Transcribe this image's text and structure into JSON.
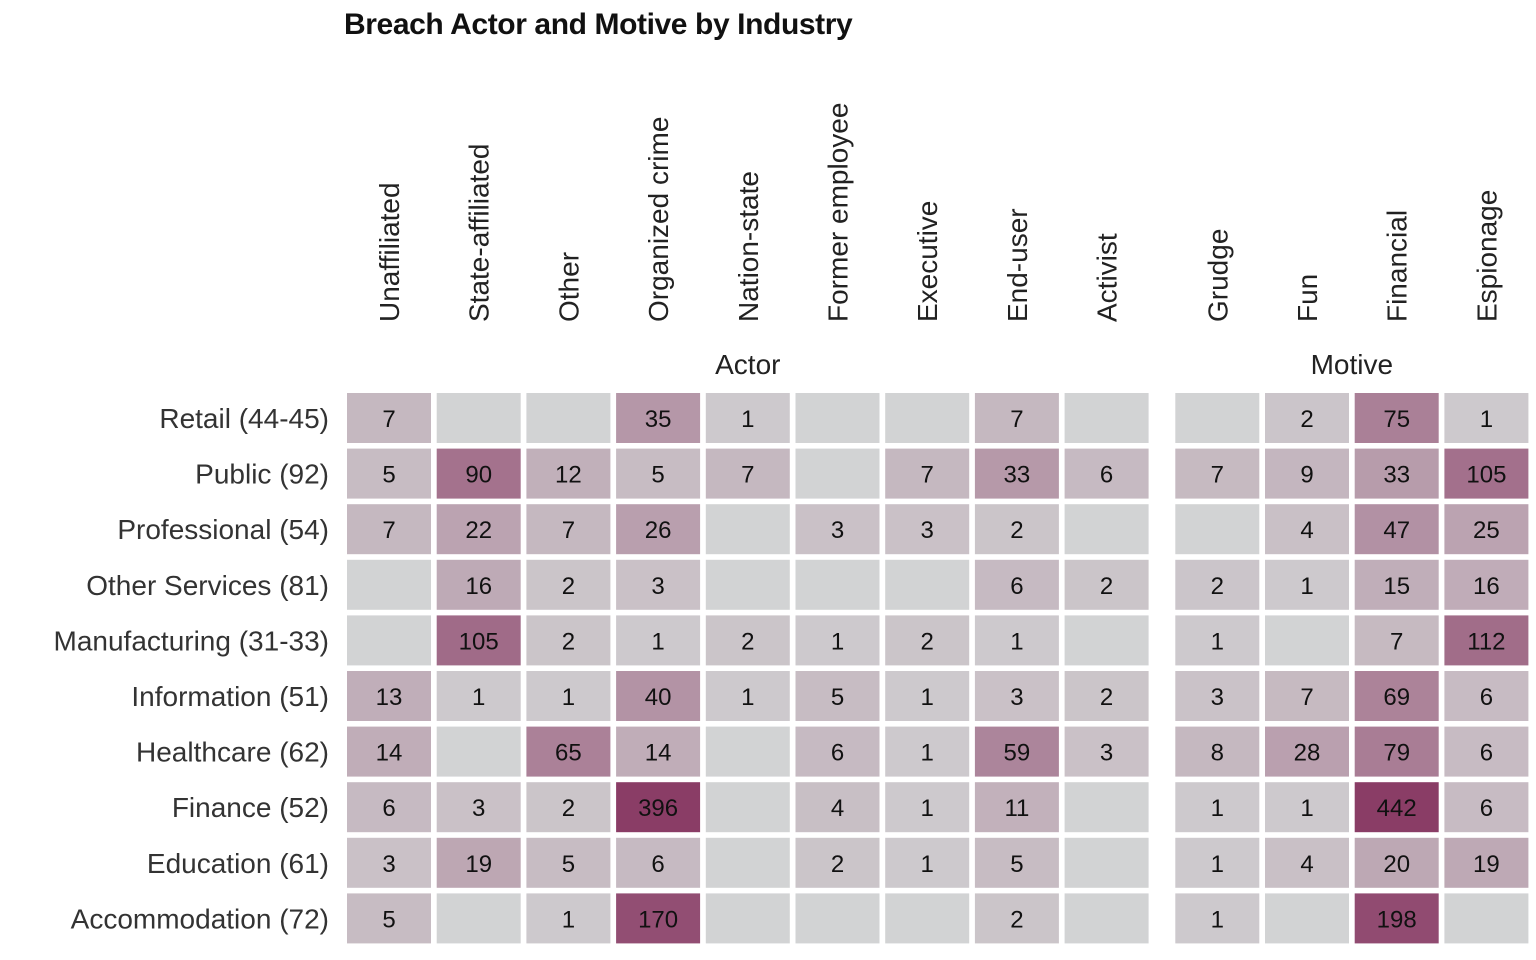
{
  "chart_data": {
    "type": "heatmap",
    "title": "Breach Actor and Motive by Industry",
    "groups": [
      {
        "name": "Actor",
        "columns": [
          "Unaffiliated",
          "State-affiliated",
          "Other",
          "Organized crime",
          "Nation-state",
          "Former employee",
          "Executive",
          "End-user",
          "Activist"
        ]
      },
      {
        "name": "Motive",
        "columns": [
          "Grudge",
          "Fun",
          "Financial",
          "Espionage"
        ]
      }
    ],
    "rows": [
      "Retail (44-45)",
      "Public (92)",
      "Professional (54)",
      "Other Services (81)",
      "Manufacturing (31-33)",
      "Information (51)",
      "Healthcare (62)",
      "Finance (52)",
      "Education (61)",
      "Accommodation (72)"
    ],
    "values": [
      [
        7,
        null,
        null,
        35,
        1,
        null,
        null,
        7,
        null,
        null,
        2,
        75,
        1
      ],
      [
        5,
        90,
        12,
        5,
        7,
        null,
        7,
        33,
        6,
        7,
        9,
        33,
        105
      ],
      [
        7,
        22,
        7,
        26,
        null,
        3,
        3,
        2,
        null,
        null,
        4,
        47,
        25
      ],
      [
        null,
        16,
        2,
        3,
        null,
        null,
        null,
        6,
        2,
        2,
        1,
        15,
        16
      ],
      [
        null,
        105,
        2,
        1,
        2,
        1,
        2,
        1,
        null,
        1,
        null,
        7,
        112
      ],
      [
        13,
        1,
        1,
        40,
        1,
        5,
        1,
        3,
        2,
        3,
        7,
        69,
        6
      ],
      [
        14,
        null,
        65,
        14,
        null,
        6,
        1,
        59,
        3,
        8,
        28,
        79,
        6
      ],
      [
        6,
        3,
        2,
        396,
        null,
        4,
        1,
        11,
        null,
        1,
        1,
        442,
        6
      ],
      [
        3,
        19,
        5,
        6,
        null,
        2,
        1,
        5,
        null,
        1,
        4,
        20,
        19
      ],
      [
        5,
        null,
        1,
        170,
        null,
        null,
        null,
        2,
        null,
        1,
        null,
        198,
        null
      ]
    ],
    "color_scale": {
      "empty": "#d2d3d4",
      "low": "#d2d3d4",
      "high": "#8a3d66"
    },
    "legend": "none"
  }
}
